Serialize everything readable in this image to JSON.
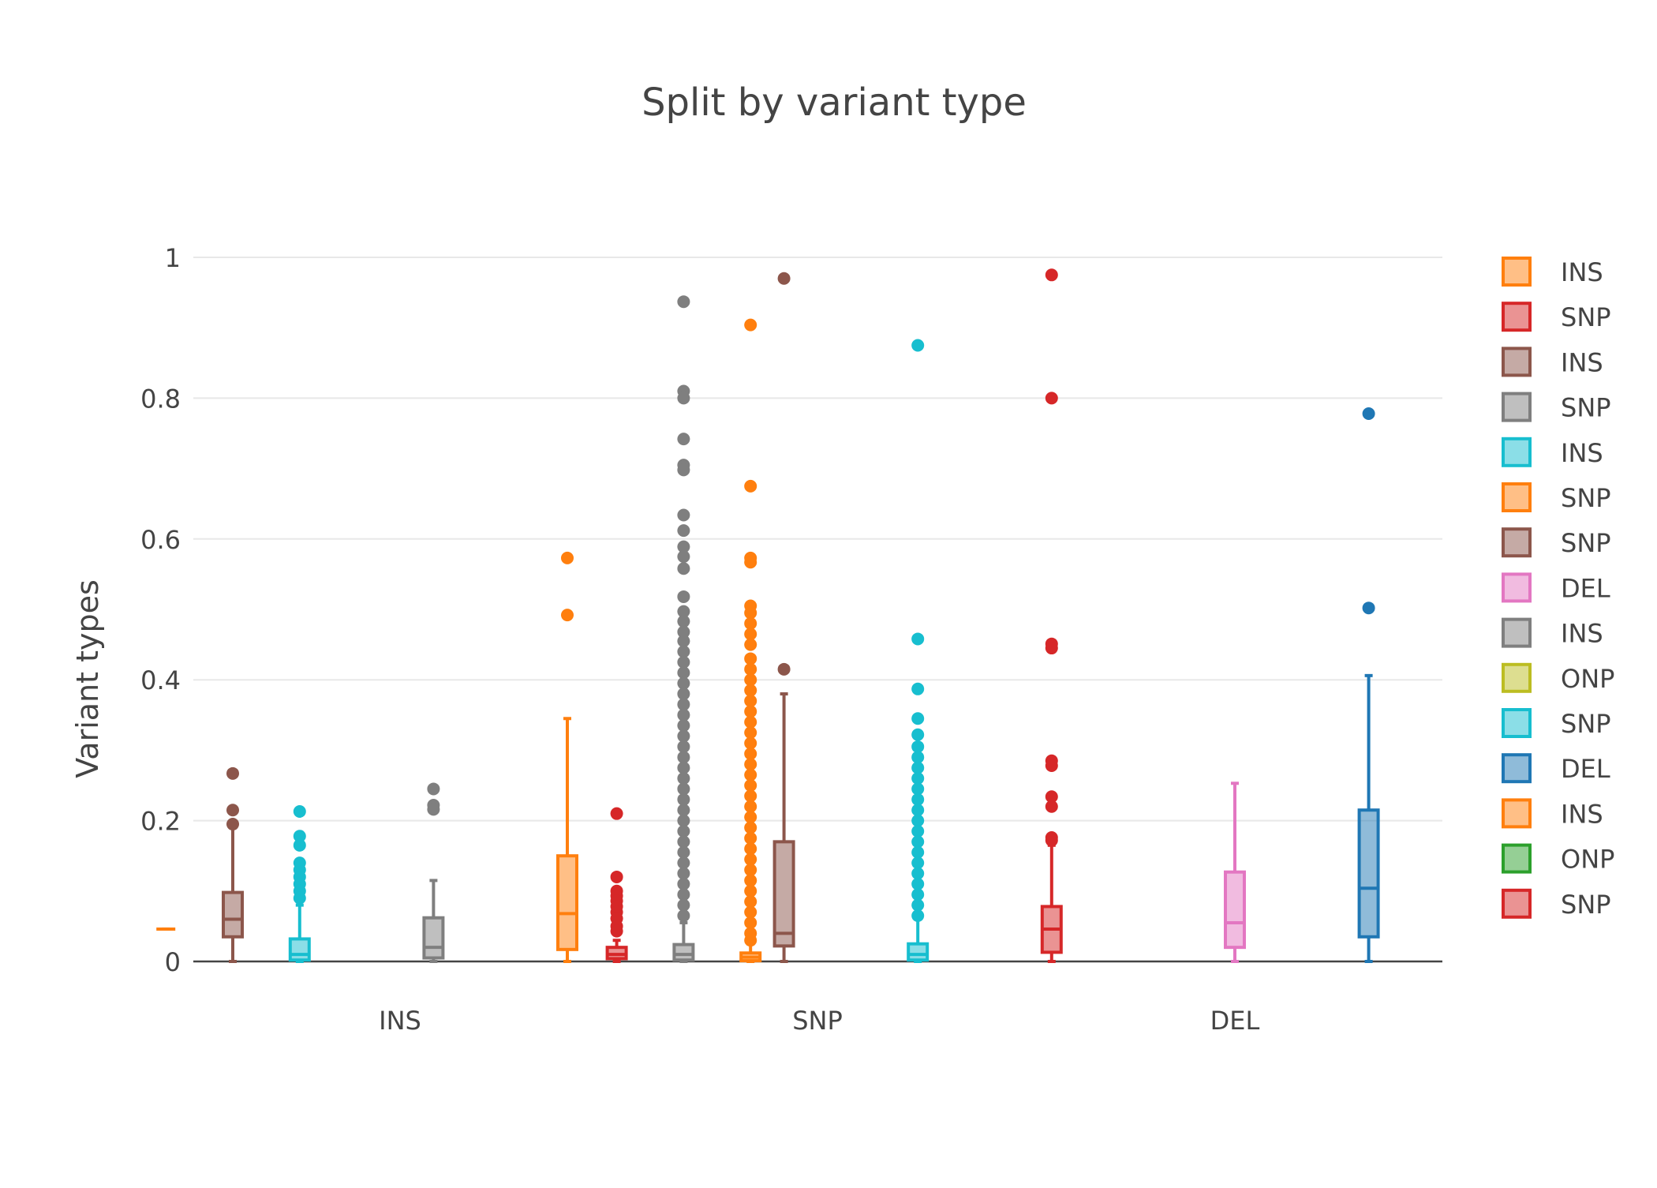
{
  "chart_data": {
    "type": "box",
    "title": "Split by variant type",
    "xlabel": "",
    "ylabel": "Variant types",
    "ylim": [
      0,
      1.05
    ],
    "y_ticks": [
      {
        "value": 0,
        "label": "0"
      },
      {
        "value": 0.2,
        "label": "0.2"
      },
      {
        "value": 0.4,
        "label": "0.4"
      },
      {
        "value": 0.6,
        "label": "0.6"
      },
      {
        "value": 0.8,
        "label": "0.8"
      },
      {
        "value": 1,
        "label": "1"
      }
    ],
    "categories": [
      "INS",
      "SNP",
      "DEL"
    ],
    "grid": true,
    "legend_position": "right",
    "series": [
      {
        "name": "INS",
        "color": "#ff7f0e",
        "boxes": [
          {
            "category": "INS",
            "min": 0.046,
            "q1": 0.046,
            "median": 0.046,
            "q3": 0.046,
            "max": 0.046,
            "outliers": []
          }
        ]
      },
      {
        "name": "SNP",
        "color": "#d62728",
        "boxes": [
          {
            "category": "SNP",
            "min": 0.0,
            "q1": 0.004,
            "median": 0.01,
            "q3": 0.02,
            "max": 0.03,
            "outliers": [
              0.21,
              0.12,
              0.1,
              0.093,
              0.086,
              0.078,
              0.07,
              0.061,
              0.05,
              0.043
            ]
          }
        ]
      },
      {
        "name": "INS",
        "color": "#8c564b",
        "boxes": [
          {
            "category": "INS",
            "min": 0.0,
            "q1": 0.035,
            "median": 0.06,
            "q3": 0.098,
            "max": 0.19,
            "outliers": [
              0.267,
              0.215,
              0.195
            ]
          }
        ]
      },
      {
        "name": "SNP",
        "color": "#7f7f7f",
        "boxes": [
          {
            "category": "SNP",
            "min": 0.0,
            "q1": 0.002,
            "median": 0.01,
            "q3": 0.024,
            "max": 0.055,
            "outliers": [
              0.937,
              0.81,
              0.8,
              0.742,
              0.705,
              0.698,
              0.634,
              0.612,
              0.589,
              0.575,
              0.558,
              0.518,
              0.497,
              0.483,
              0.468,
              0.455,
              0.44,
              0.425,
              0.41,
              0.395,
              0.38,
              0.365,
              0.35,
              0.335,
              0.32,
              0.305,
              0.29,
              0.275,
              0.26,
              0.245,
              0.23,
              0.215,
              0.2,
              0.185,
              0.17,
              0.155,
              0.14,
              0.125,
              0.11,
              0.095,
              0.08,
              0.065
            ]
          }
        ]
      },
      {
        "name": "INS",
        "color": "#17becf",
        "boxes": [
          {
            "category": "INS",
            "min": 0.0,
            "q1": 0.002,
            "median": 0.01,
            "q3": 0.032,
            "max": 0.08,
            "outliers": [
              0.213,
              0.178,
              0.165,
              0.14,
              0.13,
              0.12,
              0.11,
              0.1,
              0.09
            ]
          }
        ]
      },
      {
        "name": "SNP",
        "color": "#ff7f0e",
        "boxes": [
          {
            "category": "SNP",
            "min": 0.0,
            "q1": 0.001,
            "median": 0.006,
            "q3": 0.012,
            "max": 0.025,
            "outliers": [
              0.904,
              0.675,
              0.573,
              0.567,
              0.505,
              0.495,
              0.48,
              0.465,
              0.45,
              0.43,
              0.415,
              0.4,
              0.385,
              0.37,
              0.355,
              0.34,
              0.325,
              0.31,
              0.295,
              0.28,
              0.265,
              0.25,
              0.235,
              0.22,
              0.205,
              0.19,
              0.175,
              0.16,
              0.145,
              0.13,
              0.115,
              0.1,
              0.085,
              0.07,
              0.055,
              0.04,
              0.03
            ]
          }
        ]
      },
      {
        "name": "SNP",
        "color": "#8c564b",
        "boxes": [
          {
            "category": "SNP",
            "min": 0.0,
            "q1": 0.022,
            "median": 0.04,
            "q3": 0.17,
            "max": 0.38,
            "outliers": [
              0.97,
              0.415
            ]
          }
        ]
      },
      {
        "name": "DEL",
        "color": "#e377c2",
        "boxes": [
          {
            "category": "DEL",
            "min": 0.0,
            "q1": 0.02,
            "median": 0.055,
            "q3": 0.127,
            "max": 0.253,
            "outliers": []
          }
        ]
      },
      {
        "name": "INS",
        "color": "#7f7f7f",
        "boxes": [
          {
            "category": "INS",
            "min": 0.0,
            "q1": 0.005,
            "median": 0.02,
            "q3": 0.062,
            "max": 0.115,
            "outliers": [
              0.245,
              0.222,
              0.216
            ]
          }
        ]
      },
      {
        "name": "ONP",
        "color": "#bcbd22",
        "boxes": []
      },
      {
        "name": "SNP",
        "color": "#17becf",
        "boxes": [
          {
            "category": "SNP",
            "min": 0.0,
            "q1": 0.002,
            "median": 0.01,
            "q3": 0.025,
            "max": 0.06,
            "outliers": [
              0.875,
              0.458,
              0.387,
              0.345,
              0.322,
              0.305,
              0.29,
              0.275,
              0.26,
              0.245,
              0.23,
              0.215,
              0.2,
              0.185,
              0.17,
              0.155,
              0.14,
              0.125,
              0.11,
              0.095,
              0.08,
              0.065
            ]
          }
        ]
      },
      {
        "name": "DEL",
        "color": "#1f77b4",
        "boxes": [
          {
            "category": "DEL",
            "min": 0.0,
            "q1": 0.035,
            "median": 0.104,
            "q3": 0.215,
            "max": 0.406,
            "outliers": [
              0.778,
              0.502
            ]
          }
        ]
      },
      {
        "name": "INS",
        "color": "#ff7f0e",
        "boxes": [
          {
            "category": "INS",
            "min": 0.0,
            "q1": 0.017,
            "median": 0.068,
            "q3": 0.15,
            "max": 0.345,
            "outliers": [
              0.573,
              0.492
            ]
          }
        ]
      },
      {
        "name": "ONP",
        "color": "#2ca02c",
        "boxes": []
      },
      {
        "name": "SNP",
        "color": "#d62728",
        "boxes": [
          {
            "category": "SNP",
            "min": 0.0,
            "q1": 0.013,
            "median": 0.046,
            "q3": 0.078,
            "max": 0.165,
            "outliers": [
              0.975,
              0.8,
              0.451,
              0.445,
              0.285,
              0.278,
              0.234,
              0.22,
              0.176,
              0.172
            ]
          }
        ]
      }
    ]
  }
}
